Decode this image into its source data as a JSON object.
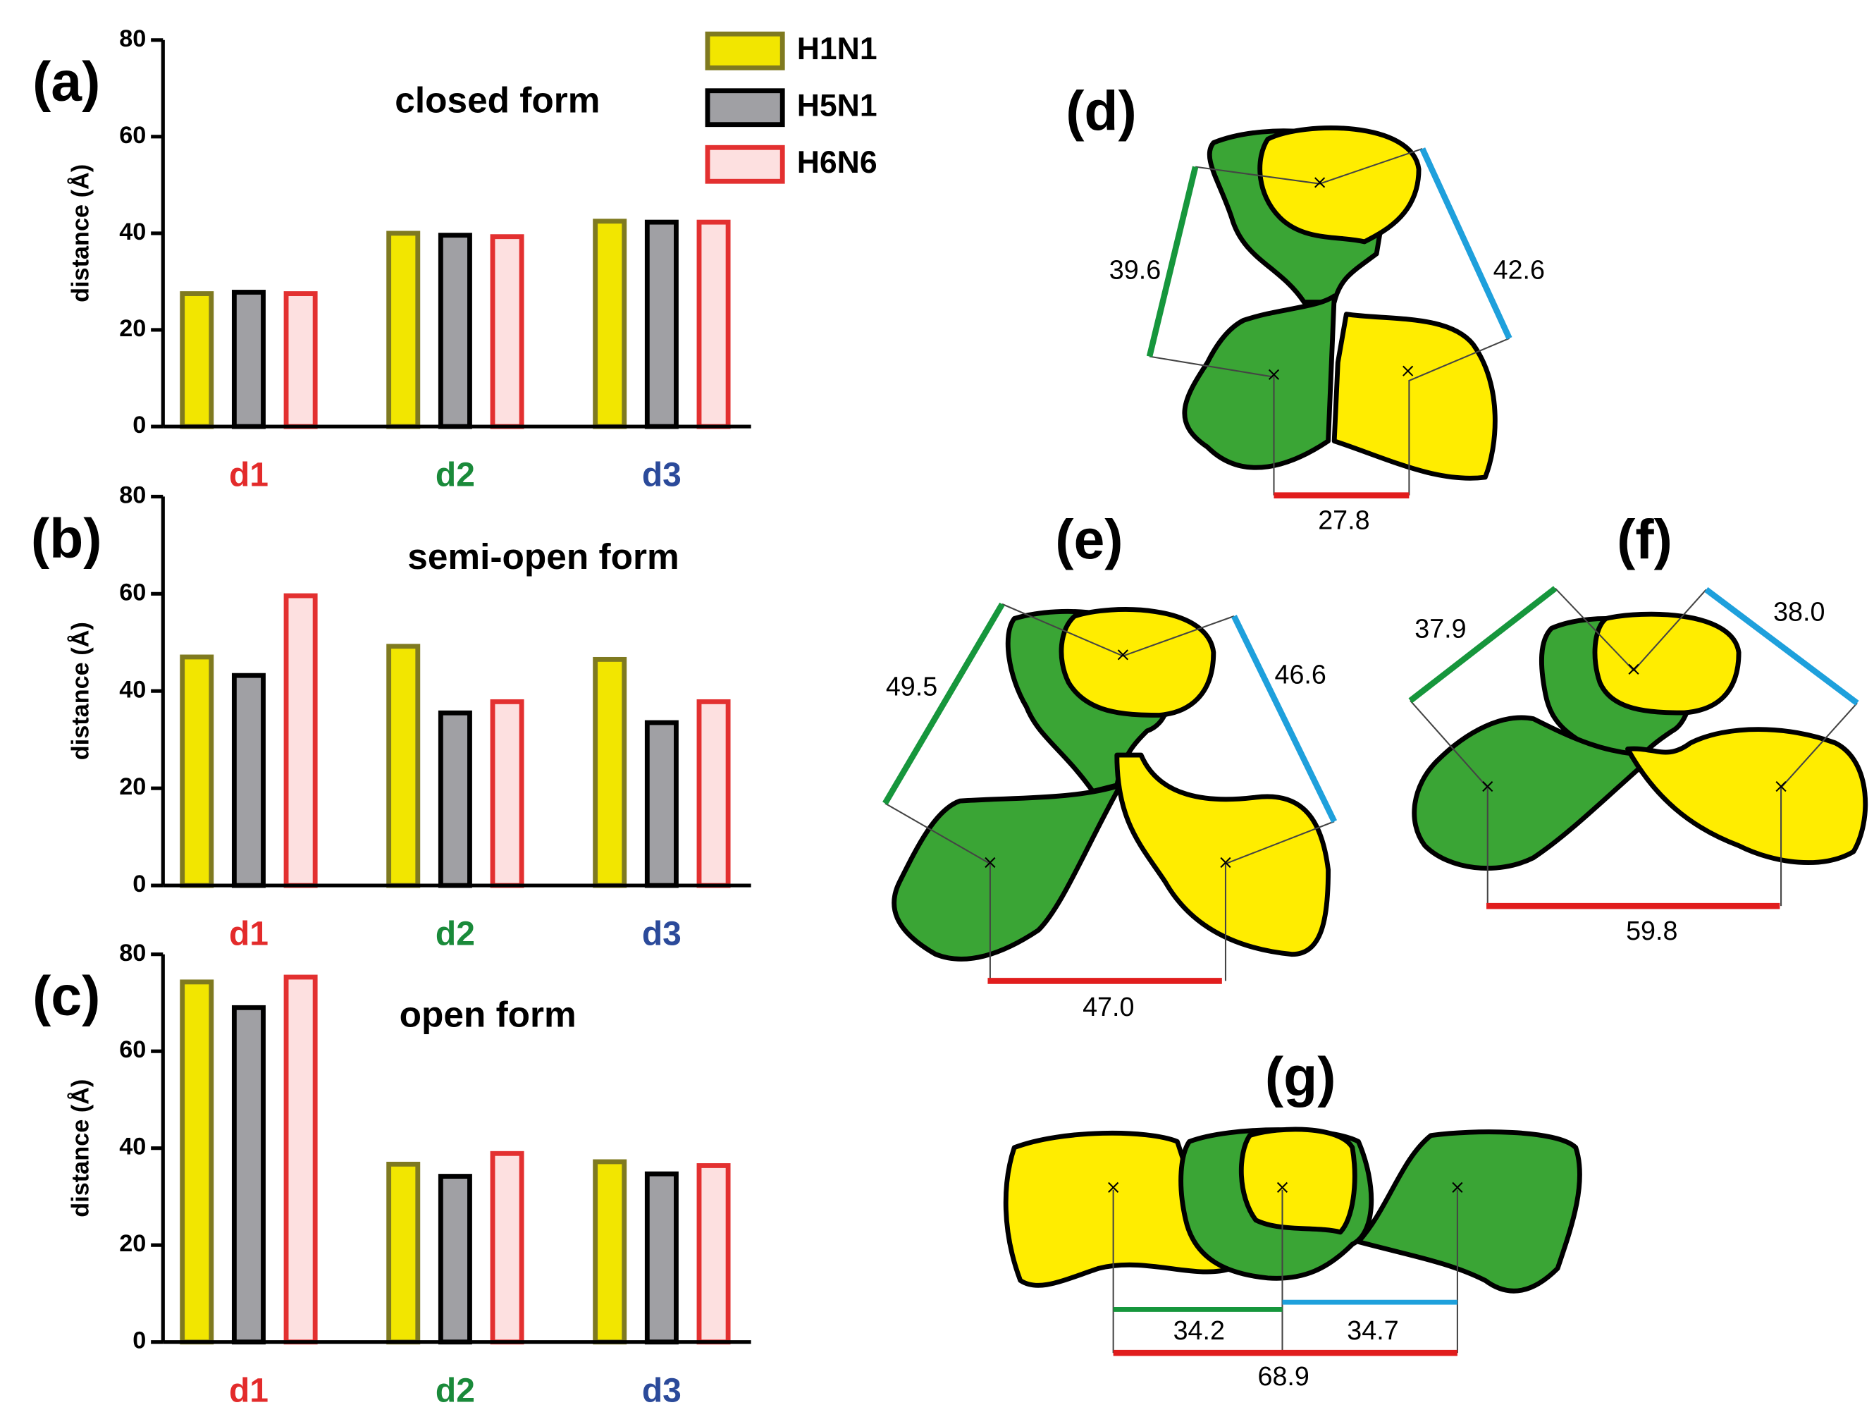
{
  "chart_data": [
    {
      "type": "bar",
      "label": "(a)",
      "title": "closed form",
      "ylabel": "distance (Å)",
      "categories": [
        "d1",
        "d2",
        "d3"
      ],
      "category_colors": [
        "#e32b2b",
        "#1a8a3a",
        "#2b4a9a"
      ],
      "ylim": [
        0,
        80
      ],
      "yticks": [
        0,
        20,
        40,
        60,
        80
      ],
      "series": [
        {
          "name": "H1N1",
          "color": "#f2e600",
          "edgecolor": "#7f7a20",
          "values": [
            27.5,
            40,
            42.5
          ]
        },
        {
          "name": "H5N1",
          "color": "#a0a0a4",
          "edgecolor": "#000000",
          "values": [
            27.8,
            39.6,
            42.3
          ]
        },
        {
          "name": "H6N6",
          "color": "#fde0e0",
          "edgecolor": "#e33030",
          "values": [
            27.5,
            39.3,
            42.3
          ]
        }
      ]
    },
    {
      "type": "bar",
      "label": "(b)",
      "title": "semi-open form",
      "ylabel": "distance (Å)",
      "categories": [
        "d1",
        "d2",
        "d3"
      ],
      "category_colors": [
        "#e32b2b",
        "#1a8a3a",
        "#2b4a9a"
      ],
      "ylim": [
        0,
        80
      ],
      "yticks": [
        0,
        20,
        40,
        60,
        80
      ],
      "series": [
        {
          "color": "#f2e600",
          "edgecolor": "#7f7a20",
          "values": [
            47,
            49.2,
            46.5
          ]
        },
        {
          "color": "#a0a0a4",
          "edgecolor": "#000000",
          "values": [
            43.2,
            35.5,
            33.5
          ]
        },
        {
          "color": "#fde0e0",
          "edgecolor": "#e33030",
          "values": [
            59.6,
            37.8,
            37.8
          ]
        }
      ]
    },
    {
      "type": "bar",
      "label": "(c)",
      "title": "open form",
      "ylabel": "distance (Å)",
      "categories": [
        "d1",
        "d2",
        "d3"
      ],
      "category_colors": [
        "#e32b2b",
        "#1a8a3a",
        "#2b4a9a"
      ],
      "ylim": [
        0,
        80
      ],
      "yticks": [
        0,
        20,
        40,
        60,
        80
      ],
      "series": [
        {
          "color": "#f2e600",
          "edgecolor": "#7f7a20",
          "values": [
            74.3,
            36.7,
            37.2
          ]
        },
        {
          "color": "#a0a0a4",
          "edgecolor": "#000000",
          "values": [
            69,
            34.2,
            34.7
          ]
        },
        {
          "color": "#fde0e0",
          "edgecolor": "#e33030",
          "values": [
            75.3,
            38.9,
            36.4
          ]
        }
      ]
    }
  ],
  "diagrams": [
    {
      "label": "(d)",
      "distances": [
        "39.6",
        "42.6",
        "27.8"
      ]
    },
    {
      "label": "(e)",
      "distances": [
        "49.5",
        "46.6",
        "47.0"
      ]
    },
    {
      "label": "(f)",
      "distances": [
        "37.9",
        "38.0",
        "59.8"
      ]
    },
    {
      "label": "(g)",
      "distances": [
        "34.2",
        "34.7",
        "68.9"
      ]
    }
  ]
}
